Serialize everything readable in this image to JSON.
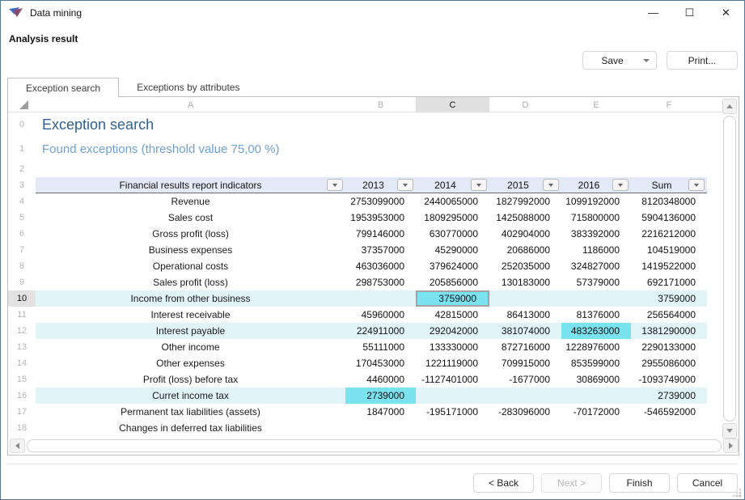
{
  "window": {
    "title": "Data mining",
    "minimize": "—",
    "maximize": "☐",
    "close": "✕"
  },
  "header": {
    "title": "Analysis result",
    "save_label": "Save",
    "print_label": "Print..."
  },
  "tabs": [
    {
      "label": "Exception search",
      "active": true
    },
    {
      "label": "Exceptions by attributes",
      "active": false
    }
  ],
  "sheet": {
    "column_letters": [
      "A",
      "B",
      "C",
      "D",
      "E",
      "F"
    ],
    "active_column": "C",
    "active_row": "10",
    "title_row": {
      "n": "0",
      "text": "Exception search"
    },
    "subtitle_row": {
      "n": "1",
      "text": "Found exceptions (threshold value 75,00 %)"
    },
    "spacer_row_n": "2",
    "header_row": {
      "n": "3",
      "indicator_label": "Financial results report indicators",
      "year_labels": [
        "2013",
        "2014",
        "2015",
        "2016",
        "Sum"
      ]
    },
    "rows": [
      {
        "n": "4",
        "label": "Revenue",
        "values": [
          "2753099000",
          "2440065000",
          "1827992000",
          "1099192000",
          "8120348000"
        ],
        "exception": false,
        "hl_cells": [],
        "selected_cell": null
      },
      {
        "n": "5",
        "label": "Sales cost",
        "values": [
          "1953953000",
          "1809295000",
          "1425088000",
          "715800000",
          "5904136000"
        ],
        "exception": false,
        "hl_cells": [],
        "selected_cell": null
      },
      {
        "n": "6",
        "label": "Gross profit (loss)",
        "values": [
          "799146000",
          "630770000",
          "402904000",
          "383392000",
          "2216212000"
        ],
        "exception": false,
        "hl_cells": [],
        "selected_cell": null
      },
      {
        "n": "7",
        "label": "Business expenses",
        "values": [
          "37357000",
          "45290000",
          "20686000",
          "1186000",
          "104519000"
        ],
        "exception": false,
        "hl_cells": [],
        "selected_cell": null
      },
      {
        "n": "8",
        "label": "Operational costs",
        "values": [
          "463036000",
          "379624000",
          "252035000",
          "324827000",
          "1419522000"
        ],
        "exception": false,
        "hl_cells": [],
        "selected_cell": null
      },
      {
        "n": "9",
        "label": "Sales profit (loss)",
        "values": [
          "298753000",
          "205856000",
          "130183000",
          "57379000",
          "692171000"
        ],
        "exception": false,
        "hl_cells": [],
        "selected_cell": null
      },
      {
        "n": "10",
        "label": "Income from other business",
        "values": [
          "",
          "3759000",
          "",
          "",
          "3759000"
        ],
        "exception": true,
        "hl_cells": [
          1
        ],
        "selected_cell": 1
      },
      {
        "n": "11",
        "label": "Interest receivable",
        "values": [
          "45960000",
          "42815000",
          "86413000",
          "81376000",
          "256564000"
        ],
        "exception": false,
        "hl_cells": [],
        "selected_cell": null
      },
      {
        "n": "12",
        "label": "Interest payable",
        "values": [
          "224911000",
          "292042000",
          "381074000",
          "483263000",
          "1381290000"
        ],
        "exception": true,
        "hl_cells": [
          3
        ],
        "selected_cell": null
      },
      {
        "n": "13",
        "label": "Other income",
        "values": [
          "55111000",
          "133330000",
          "872716000",
          "1228976000",
          "2290133000"
        ],
        "exception": false,
        "hl_cells": [],
        "selected_cell": null
      },
      {
        "n": "14",
        "label": "Other expenses",
        "values": [
          "170453000",
          "1221119000",
          "709915000",
          "853599000",
          "2955086000"
        ],
        "exception": false,
        "hl_cells": [],
        "selected_cell": null
      },
      {
        "n": "15",
        "label": "Profit (loss) before tax",
        "values": [
          "4460000",
          "-1127401000",
          "-1677000",
          "30869000",
          "-1093749000"
        ],
        "exception": false,
        "hl_cells": [],
        "selected_cell": null
      },
      {
        "n": "16",
        "label": "Curret income tax",
        "values": [
          "2739000",
          "",
          "",
          "",
          "2739000"
        ],
        "exception": true,
        "hl_cells": [
          0
        ],
        "selected_cell": null
      },
      {
        "n": "17",
        "label": "Permanent tax liabilities (assets)",
        "values": [
          "1847000",
          "-195171000",
          "-283096000",
          "-70172000",
          "-546592000"
        ],
        "exception": false,
        "hl_cells": [],
        "selected_cell": null
      },
      {
        "n": "18",
        "label": "Changes in deferred tax liabilities",
        "values": [
          "",
          "",
          "",
          "",
          ""
        ],
        "exception": false,
        "hl_cells": [],
        "selected_cell": null
      }
    ]
  },
  "footer": {
    "back_label": "< Back",
    "next_label": "Next >",
    "finish_label": "Finish",
    "cancel_label": "Cancel"
  },
  "colors": {
    "exception_row_bg": "#e1f5f9",
    "exception_cell_bg": "#7be2ef",
    "header_row_bg": "#e4e9f7",
    "sheet_title_text": "#2f608f",
    "sheet_subtitle_text": "#6fa0d2",
    "active_header_bg": "#e0e0e0"
  }
}
